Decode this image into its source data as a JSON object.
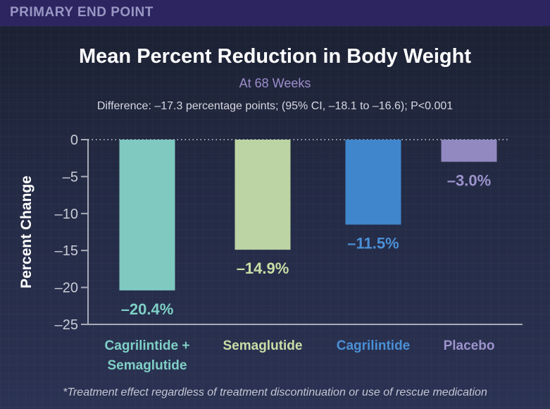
{
  "header": {
    "label": "PRIMARY END POINT"
  },
  "title": "Mean Percent Reduction in Body Weight",
  "subtitle": "At 68 Weeks",
  "difference_note": "Difference: –17.3 percentage points; (95% CI, –18.1 to –16.6); P<0.001",
  "footnote": "*Treatment effect regardless of treatment discontinuation or use of rescue medication",
  "colors": {
    "header_band": "#2c2560",
    "axis": "#a9acb8",
    "cagrilintide_semaglutide": "#7fc9c1",
    "semaglutide": "#bcd4a4",
    "cagrilintide": "#3f86cc",
    "placebo": "#9289c1"
  },
  "chart_data": {
    "type": "bar",
    "title": "Mean Percent Reduction in Body Weight",
    "subtitle": "At 68 Weeks",
    "xlabel": "",
    "ylabel": "Percent Change",
    "ylim": [
      -25,
      0
    ],
    "yticks": [
      0,
      -5,
      -10,
      -15,
      -20,
      -25
    ],
    "ytick_labels": [
      "0",
      "–5",
      "–10",
      "–15",
      "–20",
      "–25"
    ],
    "grid": false,
    "zero_line": "dotted",
    "categories": [
      [
        "Cagrilintide +",
        "Semaglutide"
      ],
      [
        "Semaglutide"
      ],
      [
        "Cagrilintide"
      ],
      [
        "Placebo"
      ]
    ],
    "values": [
      -20.4,
      -14.9,
      -11.5,
      -3.0
    ],
    "value_labels": [
      "–20.4%",
      "–14.9%",
      "–11.5%",
      "–3.0%"
    ],
    "bar_colors": [
      "#7fc9c1",
      "#bcd4a4",
      "#3f86cc",
      "#9289c1"
    ],
    "label_colors": [
      "#7fd0c6",
      "#c9dea6",
      "#4a90d6",
      "#9d93cc"
    ]
  }
}
